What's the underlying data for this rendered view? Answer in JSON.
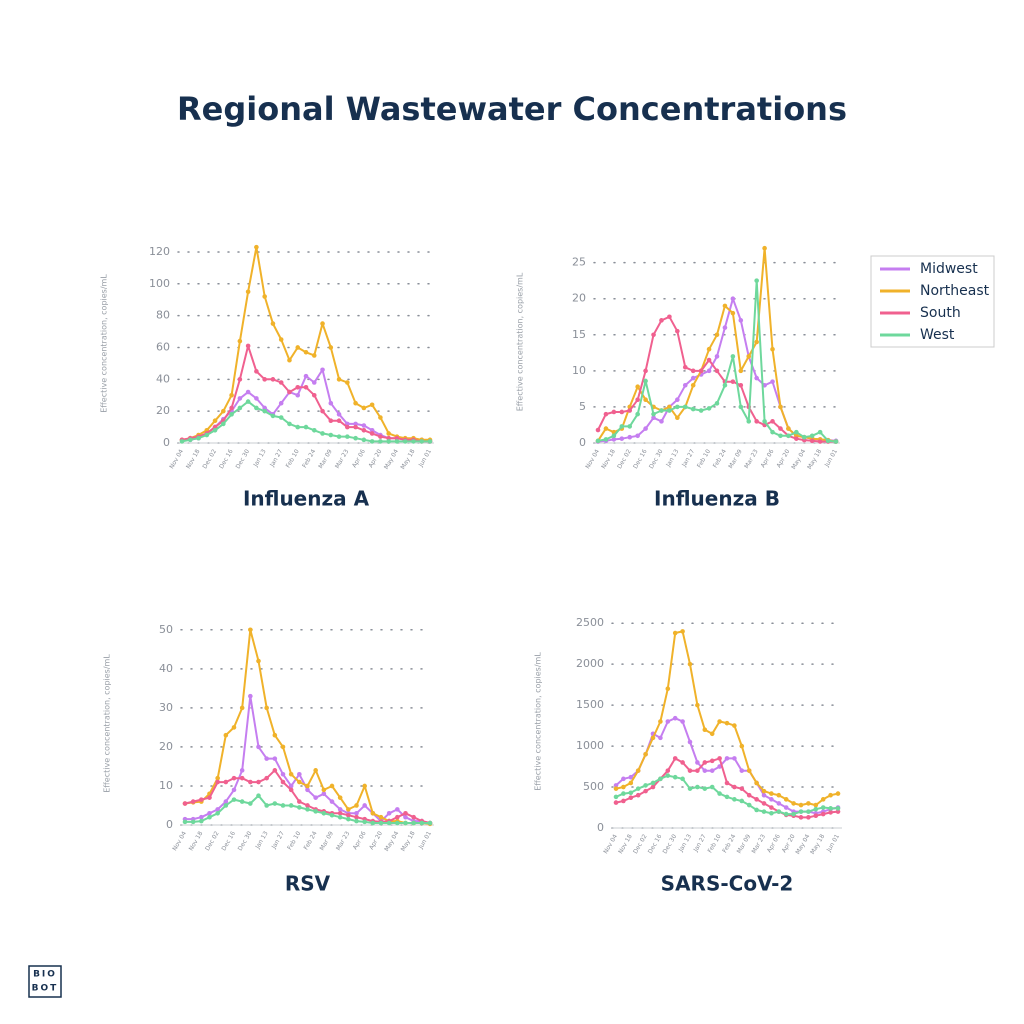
{
  "title": "Regional  Wastewater Concentrations",
  "logo": [
    "BIO",
    "BOT"
  ],
  "legend": [
    {
      "name": "Midwest",
      "color": "#c57ef0"
    },
    {
      "name": "Northeast",
      "color": "#f0b22a"
    },
    {
      "name": "South",
      "color": "#f0608f"
    },
    {
      "name": "West",
      "color": "#6ed89c"
    }
  ],
  "chart_data": [
    {
      "type": "line",
      "title": "Influenza A",
      "y_label": "Effective concentration, copies/mL",
      "categories": [
        "Nov 04",
        null,
        "Nov 18",
        null,
        "Dec 02",
        null,
        "Dec 16",
        null,
        "Dec 30",
        null,
        "Jan 13",
        null,
        "Jan 27",
        null,
        "Feb 10",
        null,
        "Feb 24",
        null,
        "Mar 09",
        null,
        "Mar 23",
        null,
        "Apr 06",
        null,
        "Apr 20",
        null,
        "May 04",
        null,
        "May 18",
        null,
        "Jun 01"
      ],
      "ylim": [
        0,
        125
      ],
      "yticks": [
        0,
        20,
        40,
        60,
        80,
        100,
        120
      ],
      "grid": true,
      "series": [
        {
          "values": [
            2,
            2,
            3,
            6,
            10,
            15,
            20,
            28,
            32,
            28,
            22,
            18,
            25,
            32,
            30,
            42,
            38,
            46,
            25,
            18,
            12,
            12,
            11,
            8,
            5,
            3,
            3,
            2,
            2,
            2,
            1
          ]
        },
        {
          "values": [
            2,
            3,
            5,
            8,
            14,
            20,
            30,
            64,
            95,
            123,
            92,
            75,
            65,
            52,
            60,
            57,
            55,
            75,
            60,
            40,
            38,
            25,
            22,
            24,
            16,
            6,
            4,
            3,
            3,
            2,
            2
          ]
        },
        {
          "values": [
            2,
            3,
            4,
            6,
            10,
            14,
            22,
            40,
            61,
            45,
            40,
            40,
            38,
            32,
            35,
            35,
            30,
            20,
            14,
            14,
            10,
            10,
            8,
            6,
            4,
            3,
            3,
            2,
            2,
            1,
            1
          ]
        },
        {
          "values": [
            1,
            2,
            3,
            5,
            8,
            12,
            18,
            22,
            26,
            22,
            20,
            17,
            16,
            12,
            10,
            10,
            8,
            6,
            5,
            4,
            4,
            3,
            2,
            1,
            1,
            1,
            1,
            1,
            1,
            1,
            1
          ]
        }
      ]
    },
    {
      "type": "line",
      "title": "Influenza B",
      "y_label": "Effective concentration, copies/mL",
      "categories": [
        "Nov 04",
        null,
        "Nov 18",
        null,
        "Dec 02",
        null,
        "Dec 16",
        null,
        "Dec 30",
        null,
        "Jan 13",
        null,
        "Jan 27",
        null,
        "Feb 10",
        null,
        "Feb 24",
        null,
        "Mar 09",
        null,
        "Mar 23",
        null,
        "Apr 06",
        null,
        "Apr 20",
        null,
        "May 04",
        null,
        "May 18",
        null,
        "Jun 01"
      ],
      "ylim": [
        0,
        28
      ],
      "yticks": [
        0,
        5,
        10,
        15,
        20,
        25
      ],
      "grid": true,
      "series": [
        {
          "values": [
            0.2,
            0.3,
            0.5,
            0.6,
            0.8,
            1,
            2,
            3.5,
            3,
            5,
            6,
            8,
            9,
            9.5,
            10,
            12,
            16,
            20,
            17,
            12,
            9,
            8,
            8.5,
            5,
            2,
            1,
            0.8,
            0.6,
            0.5,
            0.4,
            0.3
          ]
        },
        {
          "values": [
            0.3,
            2,
            1.5,
            2,
            5,
            7.8,
            6,
            5,
            4.5,
            5,
            3.5,
            5,
            8,
            10,
            13,
            15,
            19,
            18,
            10,
            12,
            14,
            27,
            13,
            5,
            2,
            1,
            0.8,
            0.6,
            0.5,
            0.4,
            0.2
          ]
        },
        {
          "values": [
            1.8,
            4,
            4.3,
            4.3,
            4.5,
            6,
            10,
            15,
            17,
            17.5,
            15.5,
            10.5,
            10,
            10,
            11.5,
            10,
            8.5,
            8.5,
            8,
            5,
            3,
            2.5,
            3,
            2,
            1,
            0.6,
            0.4,
            0.3,
            0.2,
            0.2,
            0.2
          ]
        },
        {
          "values": [
            0.3,
            0.5,
            1,
            2.3,
            2.3,
            4,
            8.6,
            4,
            4.5,
            4.5,
            5,
            5,
            4.7,
            4.5,
            4.8,
            5.5,
            8,
            12,
            5,
            3,
            22.5,
            3,
            1.5,
            1,
            1,
            1.5,
            0.8,
            1,
            1.5,
            0.3,
            0.2
          ]
        }
      ]
    },
    {
      "type": "line",
      "title": "RSV",
      "y_label": "Effective concentration, copies/mL",
      "categories": [
        "Nov 04",
        null,
        "Nov 18",
        null,
        "Dec 02",
        null,
        "Dec 16",
        null,
        "Dec 30",
        null,
        "Jan 13",
        null,
        "Jan 27",
        null,
        "Feb 10",
        null,
        "Feb 24",
        null,
        "Mar 09",
        null,
        "Mar 23",
        null,
        "Apr 06",
        null,
        "Apr 20",
        null,
        "May 04",
        null,
        "May 18",
        null,
        "Jun 01"
      ],
      "ylim": [
        0,
        52
      ],
      "yticks": [
        0,
        10,
        20,
        30,
        40,
        50
      ],
      "grid": true,
      "series": [
        {
          "values": [
            1.5,
            1.5,
            2,
            3,
            4,
            6,
            9,
            14,
            33,
            20,
            17,
            17,
            13,
            10,
            13,
            9,
            7,
            8,
            6,
            4,
            3,
            3,
            5,
            3,
            1,
            3,
            4,
            2,
            1,
            1,
            0.5
          ]
        },
        {
          "values": [
            5.5,
            5.8,
            6,
            8,
            12,
            23,
            25,
            30,
            50,
            42,
            30,
            23,
            20,
            13,
            11,
            10,
            14,
            9,
            10,
            7,
            4,
            5,
            10,
            3,
            2,
            1,
            1,
            0.5,
            0.5,
            0.5,
            0.3
          ]
        },
        {
          "values": [
            5.5,
            6,
            6.5,
            7,
            11,
            11,
            12,
            12,
            11,
            11,
            12,
            14,
            11,
            9,
            6,
            5,
            4,
            3.5,
            3,
            3,
            2.5,
            2,
            1.5,
            1,
            0.8,
            1,
            2,
            3,
            2,
            1,
            0.5
          ]
        },
        {
          "values": [
            0.8,
            0.8,
            1,
            2,
            3,
            5,
            6.5,
            6,
            5.5,
            7.5,
            5,
            5.5,
            5,
            5,
            4.5,
            4,
            3.5,
            3,
            2.5,
            2,
            1.5,
            1,
            0.8,
            0.5,
            0.5,
            0.5,
            0.5,
            0.5,
            0.5,
            0.5,
            0.5
          ]
        }
      ]
    },
    {
      "type": "line",
      "title": "SARS-CoV-2",
      "y_label": "Effective concentration, copies/mL",
      "categories": [
        "Nov 04",
        null,
        "Nov 18",
        null,
        "Dec 02",
        null,
        "Dec 16",
        null,
        "Dec 30",
        null,
        "Jan 13",
        null,
        "Jan 27",
        null,
        "Feb 10",
        null,
        "Feb 24",
        null,
        "Mar 09",
        null,
        "Mar 23",
        null,
        "Apr 06",
        null,
        "Apr 20",
        null,
        "May 04",
        null,
        "May 18",
        null,
        "Jun 01"
      ],
      "ylim": [
        0,
        2600
      ],
      "yticks": [
        0,
        500,
        1000,
        1500,
        2000,
        2500
      ],
      "grid": true,
      "series": [
        {
          "values": [
            520,
            600,
            620,
            700,
            900,
            1150,
            1100,
            1300,
            1340,
            1300,
            1050,
            800,
            700,
            700,
            750,
            850,
            850,
            700,
            700,
            550,
            400,
            350,
            300,
            250,
            200,
            200,
            200,
            180,
            200,
            230,
            250
          ]
        },
        {
          "values": [
            480,
            500,
            550,
            700,
            900,
            1100,
            1300,
            1700,
            2380,
            2400,
            2000,
            1500,
            1200,
            1150,
            1300,
            1280,
            1250,
            1000,
            700,
            550,
            450,
            420,
            400,
            350,
            300,
            280,
            300,
            280,
            350,
            400,
            420
          ]
        },
        {
          "values": [
            310,
            330,
            370,
            400,
            450,
            500,
            600,
            700,
            850,
            800,
            700,
            700,
            800,
            820,
            850,
            550,
            500,
            480,
            400,
            350,
            300,
            250,
            200,
            160,
            150,
            130,
            130,
            150,
            170,
            190,
            200
          ]
        },
        {
          "values": [
            380,
            420,
            430,
            480,
            520,
            550,
            600,
            640,
            620,
            600,
            480,
            500,
            480,
            500,
            420,
            380,
            350,
            330,
            280,
            220,
            200,
            180,
            200,
            170,
            170,
            200,
            200,
            230,
            250,
            240,
            240
          ]
        }
      ]
    }
  ]
}
